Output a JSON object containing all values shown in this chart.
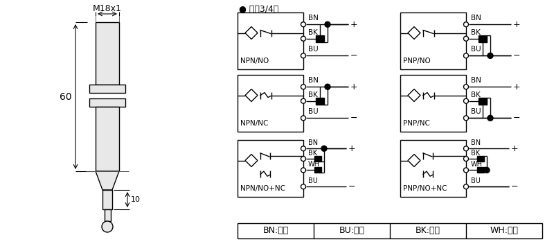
{
  "bg_color": "#ffffff",
  "line_color": "#000000",
  "title_dc": "● 直涁3/4线",
  "sensor_label": "M18x1",
  "dim_60": "60",
  "dim_10": "10",
  "wiring_labels": [
    "NPN/NO",
    "NPN/NC",
    "NPN/NO+NC",
    "PNP/NO",
    "PNP/NC",
    "PNP/NO+NC"
  ],
  "wire_colors_label": [
    "BN:棕色",
    "BU:兰色",
    "BK:黑色",
    "WH:白色"
  ],
  "sensor_fill": "#e8e8e8"
}
